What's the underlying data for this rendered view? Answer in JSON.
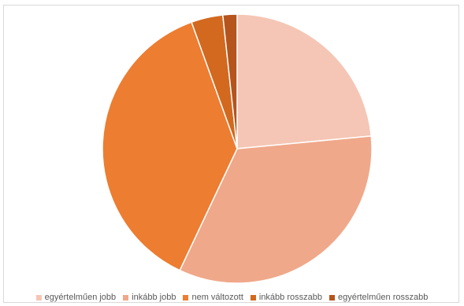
{
  "chart_data": {
    "type": "pie",
    "title": "",
    "categories": [
      "egyértelműen jobb",
      "inkább jobb",
      "nem változott",
      "inkább rosszabb",
      "egyértelműen rosszabb"
    ],
    "values": [
      23.5,
      33.5,
      37.5,
      3.8,
      1.7
    ],
    "colors": [
      "#f5c6b5",
      "#f0a88a",
      "#ed7d31",
      "#d2691e",
      "#b5541c"
    ],
    "start_angle_deg": 0,
    "direction": "clockwise",
    "legend_position": "bottom",
    "legend": [
      "egyértelműen jobb",
      "inkább jobb",
      "nem változott",
      "inkább rosszabb",
      "egyértelműen rosszabb"
    ]
  }
}
